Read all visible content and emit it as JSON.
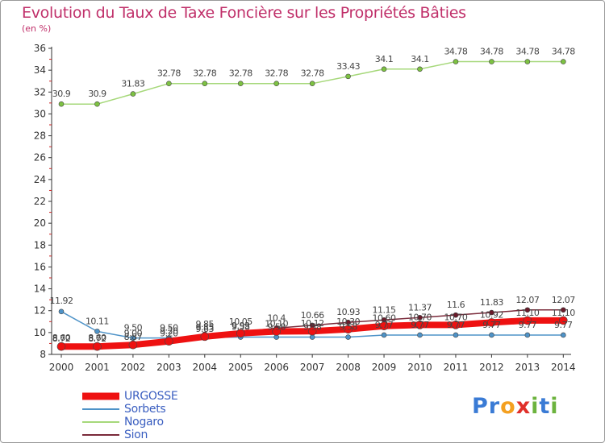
{
  "title": "Evolution du Taux de Taxe Foncière sur les Propriétés Bâties",
  "subtitle": "(en %)",
  "logo": {
    "text": "Proxiti",
    "letters": [
      {
        "ch": "P",
        "color": "#3a7bd5"
      },
      {
        "ch": "r",
        "color": "#3a7bd5"
      },
      {
        "ch": "o",
        "color": "#f4a020"
      },
      {
        "ch": "x",
        "color": "#e0302a"
      },
      {
        "ch": "i",
        "color": "#6cb33e"
      },
      {
        "ch": "t",
        "color": "#3a7bd5"
      },
      {
        "ch": "i",
        "color": "#6cb33e"
      }
    ]
  },
  "chart_data": {
    "type": "line",
    "title": "Evolution du Taux de Taxe Foncière sur les Propriétés Bâties",
    "ylabel": "(en %)",
    "xlabel": "",
    "x": [
      "2000",
      "2001",
      "2002",
      "2003",
      "2004",
      "2005",
      "2006",
      "2007",
      "2008",
      "2009",
      "2010",
      "2011",
      "2012",
      "2013",
      "2014"
    ],
    "ylim": [
      8,
      36
    ],
    "yticks": [
      8,
      10,
      12,
      14,
      16,
      18,
      20,
      22,
      24,
      26,
      28,
      30,
      32,
      34,
      36
    ],
    "grid": false,
    "legend_position": "bottom-left",
    "series": [
      {
        "name": "URGOSSE",
        "color": "#ee1111",
        "marker_color": "#ee1111",
        "width": 8,
        "values": [
          8.72,
          8.72,
          8.87,
          9.2,
          9.63,
          9.93,
          10.1,
          10.12,
          10.3,
          10.6,
          10.7,
          10.7,
          10.92,
          11.1,
          11.1
        ],
        "labels": [
          "8.72",
          "8.72",
          "8.87",
          "9.20",
          "9.63",
          "9.93",
          "10.10",
          "10.12",
          "10.30",
          "10.60",
          "10.70",
          "10.70",
          "10.92",
          "11.10",
          "11.10"
        ]
      },
      {
        "name": "Sorbets",
        "color": "#4e93c8",
        "marker_color": "#4e93c8",
        "width": 1.5,
        "values": [
          11.92,
          10.11,
          9.5,
          9.5,
          9.55,
          9.58,
          9.58,
          9.58,
          9.58,
          9.77,
          9.77,
          9.77,
          9.77,
          9.77,
          9.77
        ],
        "labels": [
          "11.92",
          "10.11",
          "9.50",
          "9.50",
          "9.55",
          "9.58",
          "9.58",
          "9.58",
          "9.58",
          "9.77",
          "9.77",
          "9.77",
          "9.77",
          "9.77",
          "9.77"
        ]
      },
      {
        "name": "Nogaro",
        "color": "#a6d87a",
        "marker_color": "#7dc242",
        "width": 1.5,
        "values": [
          30.9,
          30.9,
          31.83,
          32.78,
          32.78,
          32.78,
          32.78,
          32.78,
          33.43,
          34.1,
          34.1,
          34.78,
          34.78,
          34.78,
          34.78
        ],
        "labels": [
          "30.9",
          "30.9",
          "31.83",
          "32.78",
          "32.78",
          "32.78",
          "32.78",
          "32.78",
          "33.43",
          "34.1",
          "34.1",
          "34.78",
          "34.78",
          "34.78",
          "34.78"
        ]
      },
      {
        "name": "Sion",
        "color": "#7a2a3a",
        "marker_color": "#6b1a2a",
        "width": 1.5,
        "values": [
          8.6,
          8.6,
          9.0,
          9.2,
          9.85,
          10.05,
          10.4,
          10.66,
          10.93,
          11.15,
          11.37,
          11.6,
          11.83,
          12.07,
          12.07
        ],
        "labels": [
          "8.60",
          "8.60",
          "9.00",
          "9.20",
          "9.85",
          "10.05",
          "10.4",
          "10.66",
          "10.93",
          "11.15",
          "11.37",
          "11.6",
          "11.83",
          "12.07",
          "12.07"
        ]
      }
    ]
  }
}
